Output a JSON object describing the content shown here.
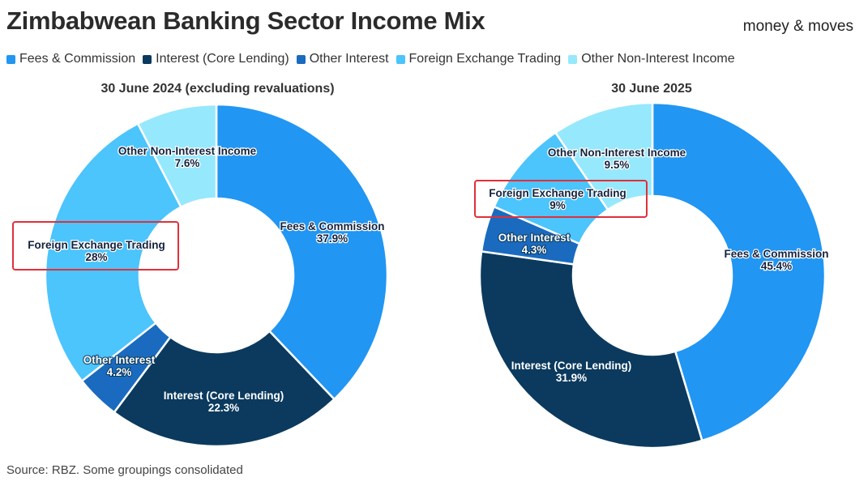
{
  "title": "Zimbabwean Banking Sector Income Mix",
  "logo": "money & moves",
  "source": "Source: RBZ. Some groupings consolidated",
  "legend": [
    {
      "label": "Fees & Commission",
      "color": "#2196f3"
    },
    {
      "label": "Interest (Core Lending)",
      "color": "#0b3a5e"
    },
    {
      "label": "Other Interest",
      "color": "#1a6bbf"
    },
    {
      "label": "Foreign Exchange Trading",
      "color": "#4cc4fc"
    },
    {
      "label": "Other Non-Interest Income",
      "color": "#96e8fd"
    }
  ],
  "chart_data": [
    {
      "type": "pie",
      "variant": "donut",
      "title": "30 June 2024 (excluding revaluations)",
      "slices": [
        {
          "label": "Fees & Commission",
          "value": 37.9,
          "display": "37.9%",
          "color": "#2196f3"
        },
        {
          "label": "Interest (Core Lending)",
          "value": 22.3,
          "display": "22.3%",
          "color": "#0b3a5e"
        },
        {
          "label": "Other Interest",
          "value": 4.2,
          "display": "4.2%",
          "color": "#1a6bbf"
        },
        {
          "label": "Foreign Exchange Trading",
          "value": 28,
          "display": "28%",
          "color": "#4cc4fc",
          "highlighted": true
        },
        {
          "label": "Other Non-Interest Income",
          "value": 7.6,
          "display": "7.6%",
          "color": "#96e8fd"
        }
      ]
    },
    {
      "type": "pie",
      "variant": "donut",
      "title": "30 June 2025",
      "slices": [
        {
          "label": "Fees & Commission",
          "value": 45.4,
          "display": "45.4%",
          "color": "#2196f3"
        },
        {
          "label": "Interest (Core Lending)",
          "value": 31.9,
          "display": "31.9%",
          "color": "#0b3a5e"
        },
        {
          "label": "Other Interest",
          "value": 4.3,
          "display": "4.3%",
          "color": "#1a6bbf"
        },
        {
          "label": "Foreign Exchange Trading",
          "value": 9,
          "display": "9%",
          "color": "#4cc4fc",
          "highlighted": true
        },
        {
          "label": "Other Non-Interest Income",
          "value": 9.5,
          "display": "9.5%",
          "color": "#96e8fd"
        }
      ]
    }
  ]
}
